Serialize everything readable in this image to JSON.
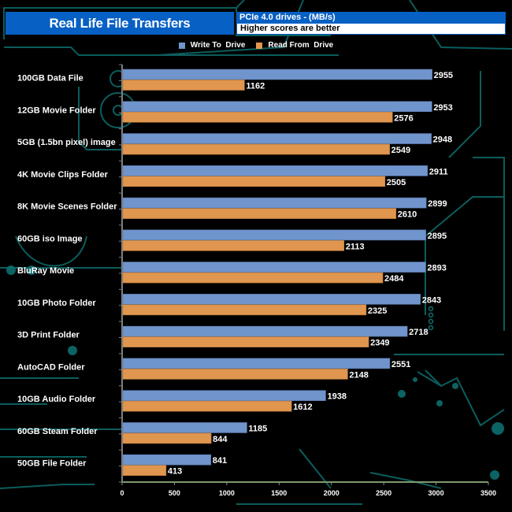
{
  "header": {
    "title": "Real Life File Transfers",
    "subtitle": "PCIe 4.0 drives - (MB/s)",
    "note": "Higher scores are better"
  },
  "colors": {
    "write": "#7094CC",
    "read": "#E0964F",
    "header_blue": "#0760C4",
    "circuit": "#0E6E6E"
  },
  "chart_data": {
    "type": "bar",
    "orientation": "horizontal",
    "title": "Real Life File Transfers",
    "subtitle": "PCIe 4.0 drives - (MB/s)",
    "xlabel": "",
    "ylabel": "",
    "xlim": [
      0,
      3500
    ],
    "xticks": [
      0,
      500,
      1000,
      1500,
      2000,
      2500,
      3000,
      3500
    ],
    "grid": false,
    "legend": "top-center",
    "categories": [
      "100GB Data File",
      "12GB Movie Folder",
      "5GB (1.5bn pixel) image",
      "4K Movie Clips Folder",
      "8K Movie Scenes Folder",
      "60GB iso Image",
      "BluRay Movie",
      "10GB Photo Folder",
      "3D Print Folder",
      "AutoCAD Folder",
      "10GB Audio Folder",
      "60GB Steam Folder",
      "50GB File Folder"
    ],
    "series": [
      {
        "name": "Write To  Drive",
        "color": "#7094CC",
        "values": [
          2955,
          2953,
          2948,
          2911,
          2899,
          2895,
          2893,
          2843,
          2718,
          2551,
          1938,
          1185,
          841
        ]
      },
      {
        "name": "Read From  Drive",
        "color": "#E0964F",
        "values": [
          1162,
          2576,
          2549,
          2505,
          2610,
          2113,
          2484,
          2325,
          2349,
          2148,
          1612,
          844,
          413
        ]
      }
    ]
  }
}
